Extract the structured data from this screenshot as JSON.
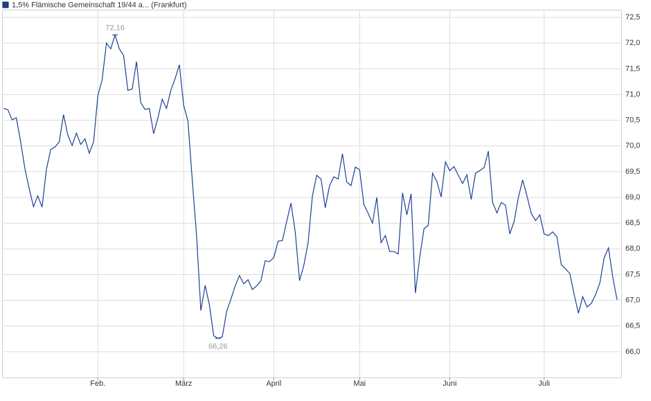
{
  "chart_data": {
    "type": "line",
    "series": [
      {
        "name": "1,5% Flämische Gemeinschaft 19/44 a... (Frankfurt)",
        "color": "#1c3f94",
        "values": [
          70.73,
          70.71,
          70.51,
          70.55,
          70.08,
          69.56,
          69.17,
          68.82,
          69.03,
          68.81,
          69.54,
          69.93,
          69.98,
          70.08,
          70.61,
          70.21,
          70.01,
          70.25,
          70.03,
          70.14,
          69.86,
          70.08,
          70.98,
          71.29,
          72.0,
          71.89,
          72.16,
          71.89,
          71.76,
          71.08,
          71.11,
          71.64,
          70.84,
          70.71,
          70.73,
          70.24,
          70.55,
          70.91,
          70.73,
          71.08,
          71.31,
          71.58,
          70.79,
          70.48,
          69.34,
          68.26,
          66.8,
          67.29,
          66.91,
          66.31,
          66.26,
          66.29,
          66.78,
          67.02,
          67.28,
          67.48,
          67.32,
          67.4,
          67.21,
          67.28,
          67.38,
          67.77,
          67.75,
          67.83,
          68.15,
          68.16,
          68.53,
          68.89,
          68.33,
          67.38,
          67.68,
          68.12,
          69.03,
          69.43,
          69.36,
          68.8,
          69.23,
          69.4,
          69.36,
          69.85,
          69.3,
          69.23,
          69.59,
          69.54,
          68.86,
          68.69,
          68.5,
          69.0,
          68.12,
          68.26,
          67.95,
          67.95,
          67.9,
          69.09,
          68.66,
          69.07,
          67.14,
          67.83,
          68.39,
          68.46,
          69.47,
          69.31,
          69.01,
          69.69,
          69.52,
          69.6,
          69.43,
          69.27,
          69.44,
          68.96,
          69.47,
          69.52,
          69.58,
          69.9,
          68.9,
          68.7,
          68.9,
          68.85,
          68.29,
          68.53,
          69.0,
          69.34,
          69.03,
          68.69,
          68.55,
          68.66,
          68.29,
          68.26,
          68.33,
          68.23,
          67.69,
          67.61,
          67.52,
          67.11,
          66.75,
          67.07,
          66.87,
          66.94,
          67.11,
          67.34,
          67.83,
          68.02,
          67.45,
          67.01
        ],
        "value_labels": [
          null,
          null,
          null,
          null,
          null,
          null,
          null,
          null,
          null,
          null,
          null,
          null,
          null,
          null,
          null,
          null,
          null,
          null,
          null,
          null,
          null,
          null,
          null,
          null,
          null,
          null,
          "72,16",
          null,
          null,
          null,
          null,
          null,
          null,
          null,
          null,
          null,
          null,
          null,
          null,
          null,
          null,
          null,
          null,
          null,
          null,
          null,
          null,
          null,
          null,
          null,
          "66,26",
          null,
          null,
          null,
          null,
          null,
          null,
          null,
          null,
          null,
          null,
          null,
          null,
          null,
          null,
          null,
          null,
          null,
          null,
          null,
          null,
          null,
          null,
          null,
          null,
          null,
          null,
          null,
          null,
          null,
          null,
          null,
          null,
          null,
          null,
          null,
          null,
          null,
          null,
          null,
          null,
          null,
          null,
          null,
          null,
          null,
          null,
          null,
          null,
          null,
          null,
          null,
          null,
          null,
          null,
          null,
          null,
          null,
          null,
          null,
          null,
          null,
          null,
          null,
          null,
          null,
          null,
          null,
          null,
          null,
          null,
          null,
          null,
          null,
          null,
          null,
          null,
          null,
          null,
          null,
          null,
          null,
          null,
          null,
          null,
          null,
          null,
          null,
          null,
          null,
          null,
          null,
          null,
          null
        ]
      }
    ],
    "categories": [
      null,
      null,
      null,
      null,
      null,
      null,
      null,
      null,
      null,
      null,
      null,
      null,
      null,
      null,
      null,
      null,
      null,
      null,
      null,
      null,
      null,
      null,
      "Feb.",
      null,
      null,
      null,
      null,
      null,
      null,
      null,
      null,
      null,
      null,
      null,
      null,
      null,
      null,
      null,
      null,
      null,
      null,
      null,
      "März",
      null,
      null,
      null,
      null,
      null,
      null,
      null,
      null,
      null,
      null,
      null,
      null,
      null,
      null,
      null,
      null,
      null,
      null,
      null,
      null,
      "April",
      null,
      null,
      null,
      null,
      null,
      null,
      null,
      null,
      null,
      null,
      null,
      null,
      null,
      null,
      null,
      null,
      null,
      null,
      null,
      "Mai",
      null,
      null,
      null,
      null,
      null,
      null,
      null,
      null,
      null,
      null,
      null,
      null,
      null,
      null,
      null,
      null,
      null,
      null,
      null,
      null,
      "Juni",
      null,
      null,
      null,
      null,
      null,
      null,
      null,
      null,
      null,
      null,
      null,
      null,
      null,
      null,
      null,
      null,
      null,
      null,
      null,
      null,
      null,
      "Juli",
      null,
      null,
      null,
      null,
      null,
      null,
      null,
      null,
      null,
      null,
      null,
      null,
      null,
      null,
      null,
      null,
      null
    ],
    "ylim": [
      65.5,
      72.65
    ],
    "yticks": [
      {
        "value": 66.0,
        "label": "66,0"
      },
      {
        "value": 66.5,
        "label": "66,5"
      },
      {
        "value": 67.0,
        "label": "67,0"
      },
      {
        "value": 67.5,
        "label": "67,5"
      },
      {
        "value": 68.0,
        "label": "68,0"
      },
      {
        "value": 68.5,
        "label": "68,5"
      },
      {
        "value": 69.0,
        "label": "69,0"
      },
      {
        "value": 69.5,
        "label": "69,5"
      },
      {
        "value": 70.0,
        "label": "70,0"
      },
      {
        "value": 70.5,
        "label": "70,5"
      },
      {
        "value": 71.0,
        "label": "71,0"
      },
      {
        "value": 71.5,
        "label": "71,5"
      },
      {
        "value": 72.0,
        "label": "72,0"
      },
      {
        "value": 72.5,
        "label": "72,5"
      }
    ],
    "grid": true,
    "legend": "top-left"
  }
}
